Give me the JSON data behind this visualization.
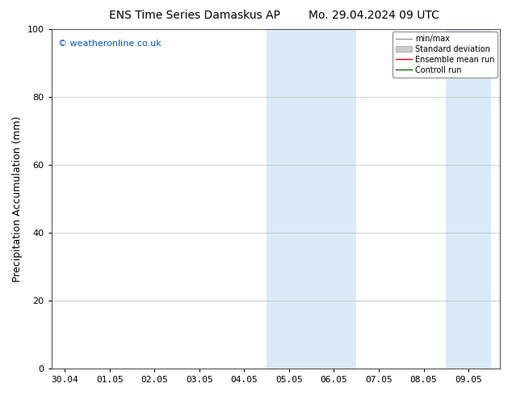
{
  "title_left": "ENS Time Series Damaskus AP",
  "title_right": "Mo. 29.04.2024 09 UTC",
  "ylabel": "Precipitation Accumulation (mm)",
  "watermark": "© weatheronline.co.uk",
  "watermark_color": "#0055cc",
  "ylim": [
    0,
    100
  ],
  "yticks": [
    0,
    20,
    40,
    60,
    80,
    100
  ],
  "background_color": "#ffffff",
  "plot_bg_color": "#ffffff",
  "shaded_color": "#daeaf8",
  "shaded_regions": [
    {
      "start_day": 4.5,
      "end_day": 6.5
    },
    {
      "start_day": 8.5,
      "end_day": 9.5
    }
  ],
  "x_tick_labels": [
    "30.04",
    "01.05",
    "02.05",
    "03.05",
    "04.05",
    "05.05",
    "06.05",
    "07.05",
    "08.05",
    "09.05"
  ],
  "x_tick_positions": [
    0,
    1,
    2,
    3,
    4,
    5,
    6,
    7,
    8,
    9
  ],
  "xlim": [
    -0.3,
    9.7
  ],
  "legend_labels": [
    "min/max",
    "Standard deviation",
    "Ensemble mean run",
    "Controll run"
  ],
  "legend_colors": [
    "#999999",
    "#cccccc",
    "#ff0000",
    "#007700"
  ],
  "title_fontsize": 10,
  "axis_label_fontsize": 9,
  "tick_fontsize": 8,
  "watermark_fontsize": 8
}
